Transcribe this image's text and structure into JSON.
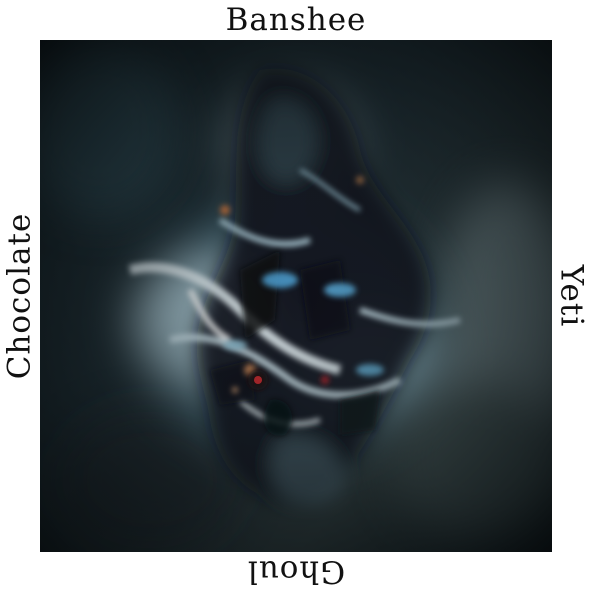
{
  "labels": {
    "top": "Banshee",
    "bottom": "Ghoul",
    "left": "Chocolate",
    "right": "Yeti"
  },
  "image": {
    "subject": "abstract-glowing-figure",
    "colors": {
      "background_dark": "#0d1418",
      "shadow_teal": "#2b4148",
      "glow_white": "#eaf4f8",
      "glow_blue": "#8fc1d6",
      "accent_orange": "#e07a3a",
      "accent_red": "#c8262a"
    }
  }
}
